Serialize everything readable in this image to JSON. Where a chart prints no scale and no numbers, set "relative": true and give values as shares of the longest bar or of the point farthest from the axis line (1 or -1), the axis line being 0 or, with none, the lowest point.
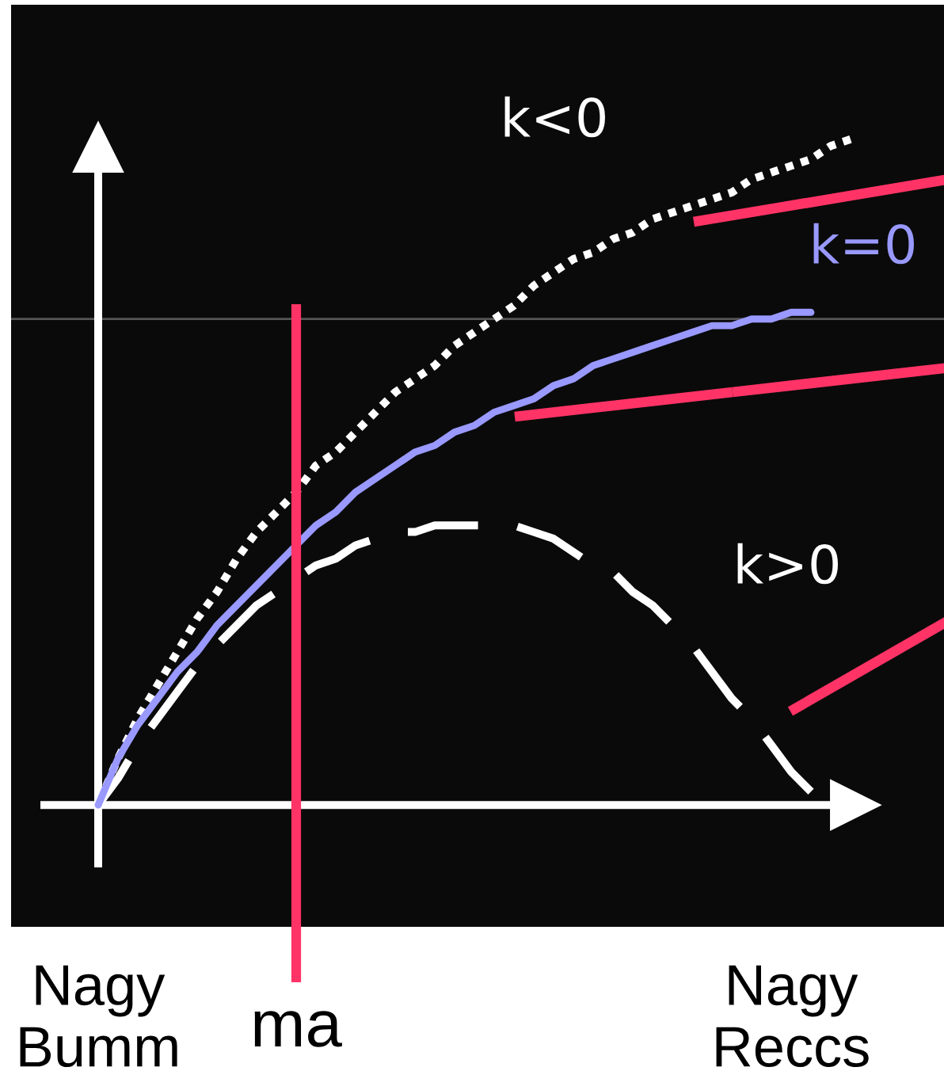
{
  "chart_data": {
    "type": "line",
    "relative": true,
    "tick_labels": "x",
    "categories": [
      "Nagy Bumm",
      null,
      null,
      null,
      null,
      null,
      null,
      null,
      null,
      null,
      "ma",
      null,
      null,
      null,
      null,
      null,
      null,
      null,
      null,
      null,
      null,
      null,
      null,
      null,
      null,
      null,
      null,
      null,
      null,
      null,
      null,
      null,
      null,
      null,
      null,
      "Nagy Reccs",
      null,
      null,
      null
    ],
    "series": [
      {
        "name": "k<0",
        "color": "#ffffff",
        "line_style": "dotted",
        "values": [
          0,
          0.07,
          0.13,
          0.18,
          0.23,
          0.28,
          0.32,
          0.37,
          0.41,
          0.44,
          0.47,
          0.51,
          0.53,
          0.56,
          0.59,
          0.62,
          0.64,
          0.66,
          0.69,
          0.71,
          0.73,
          0.75,
          0.78,
          0.8,
          0.82,
          0.83,
          0.85,
          0.86,
          0.88,
          0.89,
          0.9,
          0.91,
          0.92,
          0.94,
          0.95,
          0.96,
          0.97,
          0.99,
          1
        ]
      },
      {
        "name": "k=0",
        "color": "#9999ff",
        "line_style": "solid",
        "values": [
          0,
          0.07,
          0.12,
          0.16,
          0.2,
          0.23,
          0.27,
          0.3,
          0.33,
          0.36,
          0.39,
          0.42,
          0.44,
          0.47,
          0.49,
          0.51,
          0.53,
          0.54,
          0.56,
          0.57,
          0.59,
          0.6,
          0.61,
          0.63,
          0.64,
          0.66,
          0.67,
          0.68,
          0.69,
          0.7,
          0.71,
          0.72,
          0.72,
          0.73,
          0.73,
          0.74,
          0.74,
          null,
          null
        ]
      },
      {
        "name": "k>0",
        "color": "#ffffff",
        "line_style": "dashed",
        "values": [
          0,
          0.04,
          0.09,
          0.13,
          0.17,
          0.21,
          0.24,
          0.27,
          0.3,
          0.32,
          0.34,
          0.36,
          0.37,
          0.39,
          0.4,
          0.41,
          0.41,
          0.42,
          0.42,
          0.42,
          0.42,
          0.42,
          0.41,
          0.4,
          0.38,
          0.36,
          0.35,
          0.32,
          0.3,
          0.27,
          0.24,
          0.2,
          0.16,
          0.13,
          0.09,
          0.05,
          0.02,
          null,
          null
        ]
      }
    ],
    "ref_lines": [
      {
        "axis": "x",
        "value": "ma",
        "color": "#ff3366"
      },
      {
        "axis": "y",
        "value": 0.73,
        "color": "#555555"
      }
    ]
  }
}
